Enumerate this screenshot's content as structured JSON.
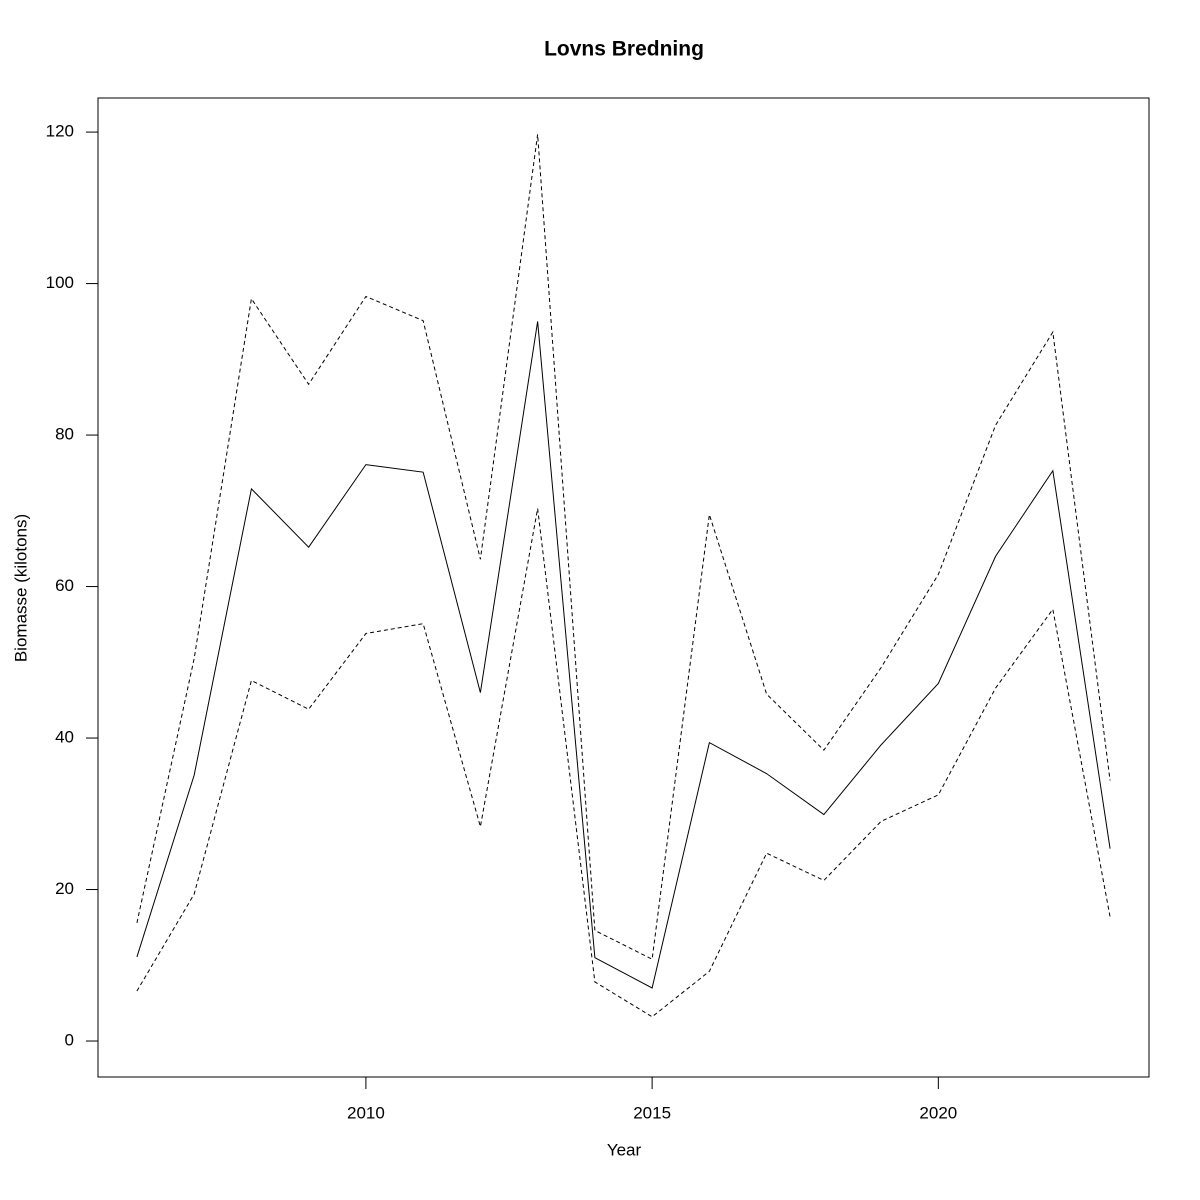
{
  "chart_data": {
    "type": "line",
    "title": "Lovns Bredning",
    "xlabel": "Year",
    "ylabel": "Biomasse (kilotons)",
    "x": [
      2006,
      2007,
      2008,
      2009,
      2010,
      2011,
      2012,
      2013,
      2014,
      2015,
      2016,
      2017,
      2018,
      2019,
      2020,
      2021,
      2022,
      2023
    ],
    "series": [
      {
        "color": "#000000",
        "linestyle": "solid",
        "values": [
          11.1,
          35.1,
          72.9,
          65.2,
          76.1,
          75.1,
          46.0,
          95.0,
          11.0,
          7.0,
          39.4,
          35.3,
          29.9,
          39.1,
          47.2,
          64.0,
          75.3,
          25.4
        ]
      },
      {
        "color": "#000000",
        "linestyle": "dashed",
        "values": [
          15.6,
          50.5,
          98.0,
          86.7,
          98.3,
          95.1,
          63.6,
          119.7,
          14.6,
          10.8,
          69.5,
          45.8,
          38.4,
          49.3,
          61.6,
          81.3,
          93.6,
          34.4
        ]
      },
      {
        "color": "#000000",
        "linestyle": "dashed",
        "values": [
          6.6,
          19.4,
          47.6,
          43.8,
          53.8,
          55.1,
          28.3,
          70.3,
          7.8,
          3.2,
          9.2,
          24.8,
          21.2,
          29.0,
          32.5,
          46.6,
          57.0,
          16.4
        ]
      }
    ],
    "xlim": [
      2005.32,
      2023.68
    ],
    "xticks": [
      2010,
      2015,
      2020
    ],
    "ylim": [
      -4.75,
      124.5
    ],
    "yticks": [
      0,
      20,
      40,
      60,
      80,
      100,
      120
    ],
    "grid": false
  }
}
